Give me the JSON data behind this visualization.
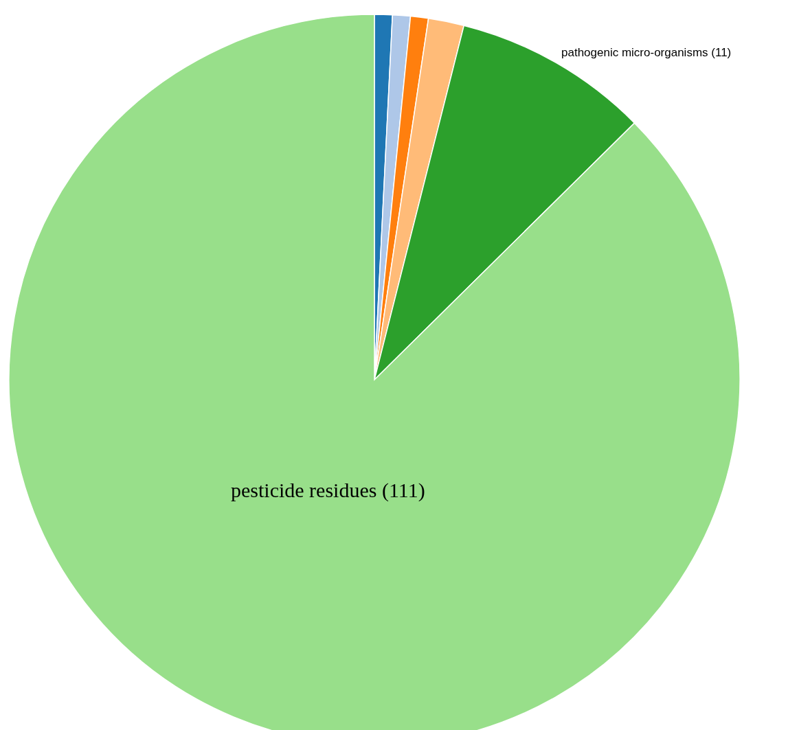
{
  "chart_data": {
    "type": "pie",
    "categories": [
      null,
      null,
      null,
      null,
      "pathogenic micro-organisms (11)",
      "pesticide residues (111)"
    ],
    "values": [
      1,
      1,
      1,
      2,
      11,
      111
    ],
    "colors": [
      "#1f77b4",
      "#aec7e8",
      "#ff7f0e",
      "#ffbb78",
      "#2ca02c",
      "#98df8a"
    ]
  }
}
